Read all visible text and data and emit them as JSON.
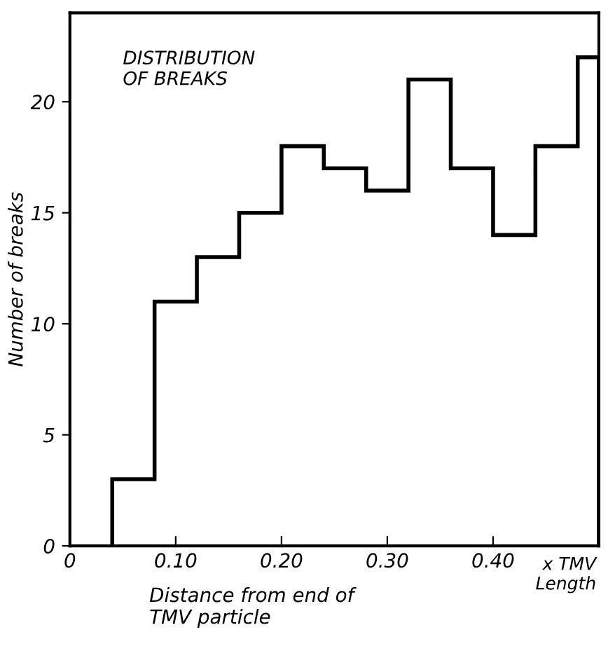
{
  "chart_data": {
    "type": "histogram",
    "bins": [
      0.04,
      0.08,
      0.12,
      0.16,
      0.2,
      0.24,
      0.28,
      0.32,
      0.36,
      0.4,
      0.44,
      0.48,
      0.5
    ],
    "values": [
      3,
      11,
      13,
      15,
      18,
      17,
      16,
      21,
      17,
      14,
      18,
      22
    ],
    "color": "#000000",
    "xlim": [
      0,
      0.5
    ],
    "ylim": [
      0,
      24
    ],
    "xticks": [
      0,
      {
        "value": 0.1,
        "label": "0.10"
      },
      {
        "value": 0.2,
        "label": "0.20"
      },
      {
        "value": 0.3,
        "label": "0.30"
      },
      {
        "value": 0.4,
        "label": "0.40"
      }
    ],
    "yticks": [
      0,
      5,
      10,
      15,
      20
    ],
    "xlabel": "Distance from end of\nTMV particle",
    "ylabel": "Number of breaks",
    "annotations": [
      "DISTRIBUTION\nOF BREAKS",
      "x TMV\nLength"
    ],
    "grid": false,
    "legend": false
  }
}
